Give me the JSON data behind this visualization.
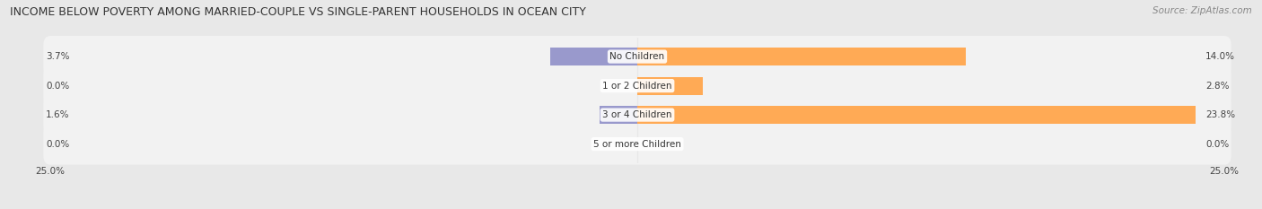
{
  "title": "INCOME BELOW POVERTY AMONG MARRIED-COUPLE VS SINGLE-PARENT HOUSEHOLDS IN OCEAN CITY",
  "source": "Source: ZipAtlas.com",
  "categories": [
    "No Children",
    "1 or 2 Children",
    "3 or 4 Children",
    "5 or more Children"
  ],
  "married_values": [
    3.7,
    0.0,
    1.6,
    0.0
  ],
  "single_values": [
    14.0,
    2.8,
    23.8,
    0.0
  ],
  "married_color": "#9999cc",
  "single_color": "#ffaa55",
  "bar_height": 0.62,
  "xlim": [
    -25,
    25
  ],
  "bg_color": "#e8e8e8",
  "row_bg_color": "#f2f2f2",
  "title_fontsize": 9,
  "source_fontsize": 7.5,
  "label_fontsize": 7.5,
  "category_fontsize": 7.5,
  "axis_label_fontsize": 7.5
}
